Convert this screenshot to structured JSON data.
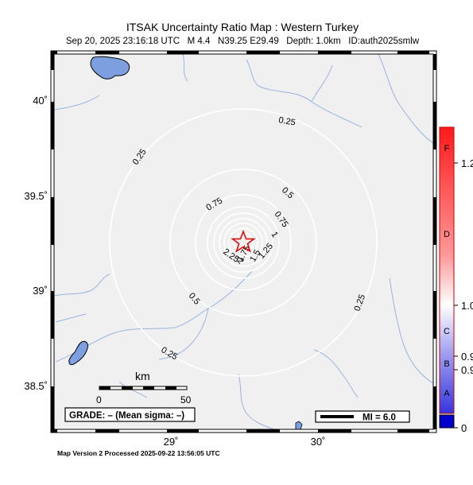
{
  "header": {
    "title": "ITSAK Uncertainty Ratio Map : Western Turkey",
    "subtitle": "Sep 20, 2025 23:16:18 UTC   M 4.4   N39.25 E29.49   Depth: 1.0km   ID:auth2025smlw"
  },
  "footer": {
    "processed": "Map Version 2 Processed 2025-09-22 13:56:05 UTC"
  },
  "map": {
    "lat_labels": [
      "40˚",
      "39.5˚",
      "39˚",
      "38.5˚"
    ],
    "lon_labels": [
      "29˚",
      "30˚"
    ],
    "epicenter_marker": "star-icon",
    "contour_labels": [
      "0.25",
      "0.25",
      "0.5",
      "0.75",
      "0.5",
      "0.75",
      "1",
      "2.25",
      "2",
      "1.75",
      "1.5",
      "1.25",
      "0.5",
      "0.25",
      "0.25"
    ],
    "colors": {
      "background": "#f0f0f0",
      "water": "#7d9fdf",
      "rivers": "#9ab3e0",
      "contours": "#ffffff",
      "star": "#e00000"
    }
  },
  "scale_bar": {
    "unit": "km",
    "labels": [
      "0",
      "50"
    ]
  },
  "grade_box": {
    "text": "GRADE: – (Mean sigma: –)"
  },
  "mi_legend": {
    "text": "MI = 6.0"
  },
  "colorbar": {
    "letters": [
      "F",
      "D",
      "C",
      "B",
      "A"
    ],
    "values": [
      "1.2",
      "1.0",
      "0.9",
      "0.9",
      "0"
    ]
  }
}
